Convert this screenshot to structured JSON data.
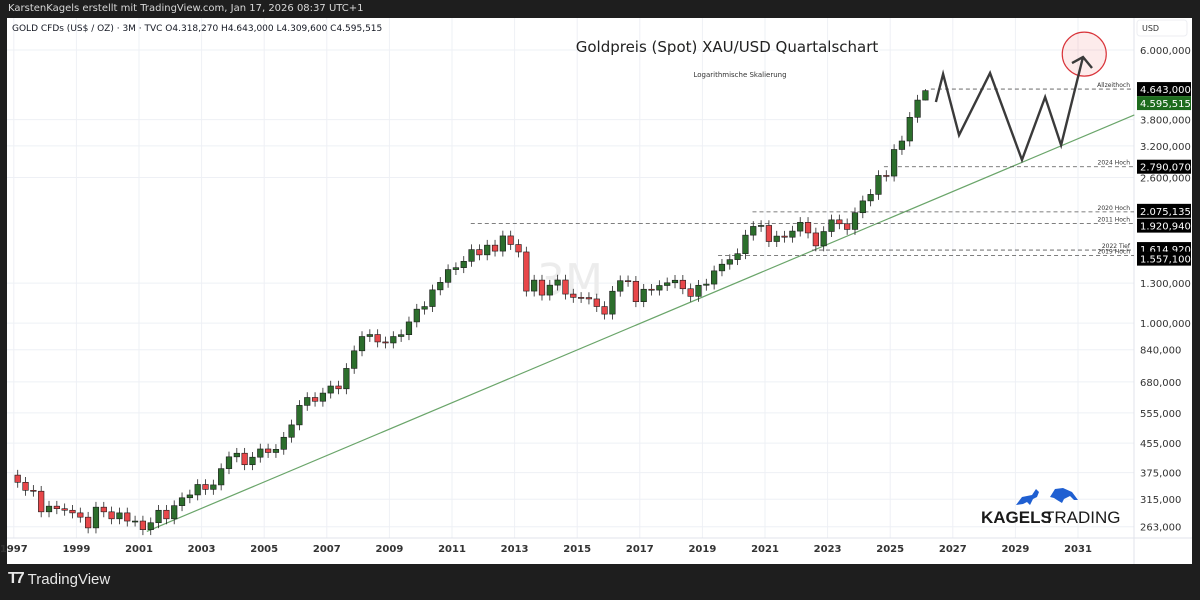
{
  "header": {
    "credit": "KarstenKagels erstellt mit TradingView.com, Jan 17, 2026 08:37 UTC+1",
    "symbol_line": "GOLD CFDs (US$ / OZ) · 3M · TVC  O4.318,270  H4.643,000  L4.309,600  C4.595,515"
  },
  "footer": {
    "brand": "TradingView",
    "brand_icon": "tradingview-logo-icon"
  },
  "logo": {
    "bold": "KAGELS",
    "light": "TRADING",
    "icons": [
      "bull-icon",
      "bear-icon"
    ],
    "color": "#1f5fd1"
  },
  "watermark": "3M",
  "chart_data": {
    "type": "candlestick",
    "title": "Goldpreis (Spot) XAU/USD Quartalschart",
    "subtitle": "Logarithmische Skalierung",
    "currency_label": "USD",
    "y_scale": "log",
    "ylim": [
      235,
      7000
    ],
    "xlim": [
      1996.8,
      2032.8
    ],
    "grid": true,
    "x_ticks": [
      "1997",
      "1999",
      "2001",
      "2003",
      "2005",
      "2007",
      "2009",
      "2011",
      "2013",
      "2015",
      "2017",
      "2019",
      "2021",
      "2023",
      "2025",
      "2027",
      "2029",
      "2031"
    ],
    "y_ticks": [
      {
        "value": 6000,
        "label": "6.000,000"
      },
      {
        "value": 3800,
        "label": "3.800,000"
      },
      {
        "value": 3200,
        "label": "3.200,000"
      },
      {
        "value": 2600,
        "label": "2.600,000"
      },
      {
        "value": 1300,
        "label": "1.300,000"
      },
      {
        "value": 1000,
        "label": "1.000,000"
      },
      {
        "value": 840,
        "label": "840,000"
      },
      {
        "value": 680,
        "label": "680,000"
      },
      {
        "value": 555,
        "label": "555,000"
      },
      {
        "value": 455,
        "label": "455,000"
      },
      {
        "value": 375,
        "label": "375,000"
      },
      {
        "value": 315,
        "label": "315,000"
      },
      {
        "value": 263,
        "label": "263,000"
      }
    ],
    "candles_start": "1997-Q1",
    "candles_period": "quarter",
    "first_open": 369,
    "closes": [
      352,
      334,
      332,
      290,
      301,
      296,
      293,
      288,
      280,
      261,
      299,
      290,
      277,
      288,
      273,
      273,
      258,
      270,
      293,
      277,
      302,
      318,
      324,
      347,
      336,
      346,
      385,
      416,
      426,
      395,
      415,
      438,
      428,
      437,
      473,
      513,
      583,
      614,
      599,
      632,
      662,
      650,
      743,
      834,
      916,
      928,
      884,
      878,
      916,
      927,
      1008,
      1096,
      1115,
      1244,
      1307,
      1421,
      1439,
      1500,
      1620,
      1565,
      1668,
      1604,
      1772,
      1675,
      1595,
      1234,
      1326,
      1202,
      1283,
      1327,
      1210,
      1184,
      1183,
      1172,
      1115,
      1061,
      1233,
      1321,
      1316,
      1151,
      1249,
      1242,
      1280,
      1303,
      1325,
      1253,
      1192,
      1282,
      1292,
      1409,
      1472,
      1517,
      1577,
      1781,
      1886,
      1898,
      1708,
      1770,
      1757,
      1829,
      1937,
      1807,
      1660,
      1824,
      1969,
      1919,
      1849,
      2063,
      2230,
      2327,
      2635,
      2624,
      3124,
      3303,
      3858,
      4320,
      4595.515
    ],
    "last_high": 4643,
    "last_low": 4309.6,
    "colors": {
      "up": "#2c6e2c",
      "down": "#e8474a",
      "wick": "#222222",
      "trendline": "#6aa56a",
      "projection": "#3a3a3a",
      "target_circle": "#d9343a"
    },
    "levels": [
      {
        "name": "Allzeithoch",
        "value": 4643,
        "from": 2026.3,
        "label": "4.643,000",
        "bg": "#000000"
      },
      {
        "name": "2024 Hoch",
        "value": 2790.07,
        "from": 2024.8,
        "label": "2.790,070",
        "bg": "#000000"
      },
      {
        "name": "2020 Hoch",
        "value": 2075.135,
        "from": 2020.6,
        "label": "2.075,135",
        "bg": "#000000"
      },
      {
        "name": "2011 Hoch",
        "value": 1920.94,
        "from": 2011.6,
        "label": "1.920,940",
        "bg": "#000000"
      },
      {
        "name": "2022 Tief",
        "value": 1614.92,
        "from": 2022.5,
        "label": "1.614,920",
        "bg": "#000000"
      },
      {
        "name": "2019 Hoch",
        "value": 1557.1,
        "from": 2019.5,
        "label": "1.557,100",
        "bg": "#000000"
      }
    ],
    "last_price": {
      "value": 4595.515,
      "label": "4.595,515",
      "bg": "#1e6b1e"
    },
    "trendline": [
      [
        2001.25,
        255
      ],
      [
        2032.8,
        3918
      ]
    ],
    "projection": [
      [
        2026.46,
        4266
      ],
      [
        2026.69,
        5125
      ],
      [
        2027.2,
        3434
      ],
      [
        2028.19,
        5157
      ],
      [
        2029.21,
        2917
      ],
      [
        2029.95,
        4406
      ],
      [
        2030.46,
        3215
      ],
      [
        2031.16,
        5730
      ]
    ],
    "target": {
      "x": 2031.2,
      "value": 5840
    }
  }
}
